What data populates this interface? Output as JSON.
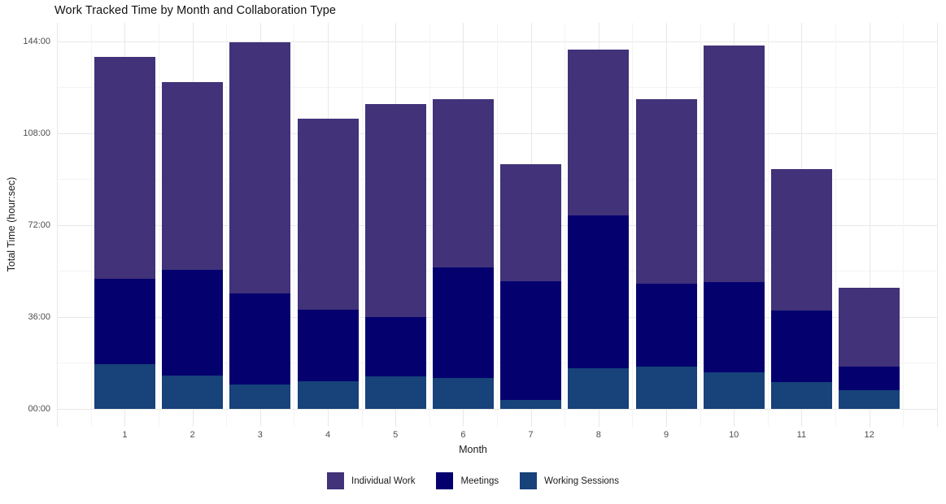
{
  "chart_data": {
    "type": "bar",
    "stacked": true,
    "title": "Work Tracked Time by Month and Collaboration Type",
    "xlabel": "Month",
    "ylabel": "Total Time (hour:sec)",
    "categories": [
      "1",
      "2",
      "3",
      "4",
      "5",
      "6",
      "7",
      "8",
      "9",
      "10",
      "11",
      "12"
    ],
    "series": [
      {
        "name": "Individual Work",
        "color": "#413279",
        "values": [
          86.8,
          73.5,
          98.3,
          74.7,
          83.4,
          66.2,
          45.8,
          65.0,
          72.5,
          92.7,
          55.5,
          30.8
        ]
      },
      {
        "name": "Meetings",
        "color": "#04016F",
        "values": [
          33.7,
          41.5,
          35.8,
          28.3,
          23.4,
          43.2,
          46.4,
          60.0,
          32.3,
          35.6,
          27.9,
          9.4
        ]
      },
      {
        "name": "Working Sessions",
        "color": "#17427A",
        "values": [
          17.4,
          13.1,
          9.5,
          10.7,
          12.6,
          12.1,
          3.6,
          15.8,
          16.7,
          14.2,
          10.5,
          7.3
        ]
      }
    ],
    "stack_order_bottom_to_top": [
      "Working Sessions",
      "Meetings",
      "Individual Work"
    ],
    "totals_hours": [
      137.9,
      128.1,
      143.6,
      113.7,
      119.4,
      121.5,
      95.8,
      140.8,
      121.5,
      142.5,
      93.9,
      47.5
    ],
    "y_ticks": [
      {
        "hours": 0,
        "label": "00:00"
      },
      {
        "hours": 36,
        "label": "36:00"
      },
      {
        "hours": 72,
        "label": "72:00"
      },
      {
        "hours": 108,
        "label": "108:00"
      },
      {
        "hours": 144,
        "label": "144:00"
      }
    ],
    "y_minor_ticks_hours": [
      18,
      54,
      90,
      126
    ],
    "ylim_hours": [
      0,
      151.3
    ],
    "grid": true,
    "legend_position": "bottom",
    "colors": {
      "background": "#ffffff",
      "grid_major": "#e8e8e8",
      "grid_minor": "#f4f4f4",
      "tick_text": "#4d4d4d",
      "title_text": "#111111"
    }
  }
}
